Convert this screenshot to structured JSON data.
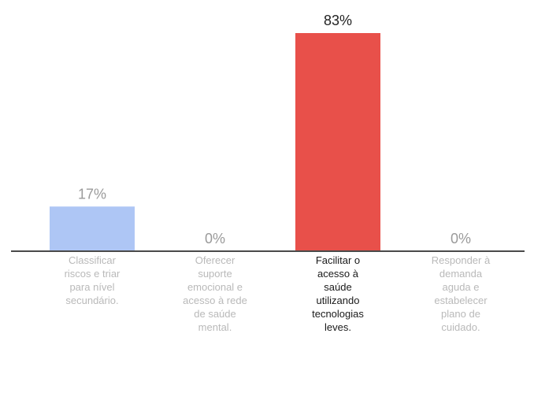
{
  "chart_data": {
    "type": "bar",
    "title": "",
    "xlabel": "",
    "ylabel": "",
    "ylim": [
      0,
      83
    ],
    "grid": false,
    "categories": [
      [
        "Classificar",
        "riscos e triar",
        "para nível",
        "secundário."
      ],
      [
        "Oferecer",
        "suporte",
        "emocional e",
        "acesso à rede",
        "de saúde",
        "mental."
      ],
      [
        "Facilitar o",
        "acesso à",
        "saúde",
        "utilizando",
        "tecnologias",
        "leves."
      ],
      [
        "Responder à",
        "demanda",
        "aguda e",
        "estabelecer",
        "plano de",
        "cuidado."
      ]
    ],
    "values": [
      17,
      0,
      83,
      0
    ],
    "value_labels": [
      "17%",
      "0%",
      "83%",
      "0%"
    ],
    "highlighted_index": 2,
    "colors": {
      "bars": [
        "#aec6f5",
        "#aec6f5",
        "#e8504a",
        "#aec6f5"
      ],
      "axis": "#4a4a4a",
      "muted_text": "#b9b9b9",
      "highlight_text": "#1a1a1a",
      "value_label_muted": "#9a9a9a",
      "value_label_highlight": "#222222"
    }
  }
}
